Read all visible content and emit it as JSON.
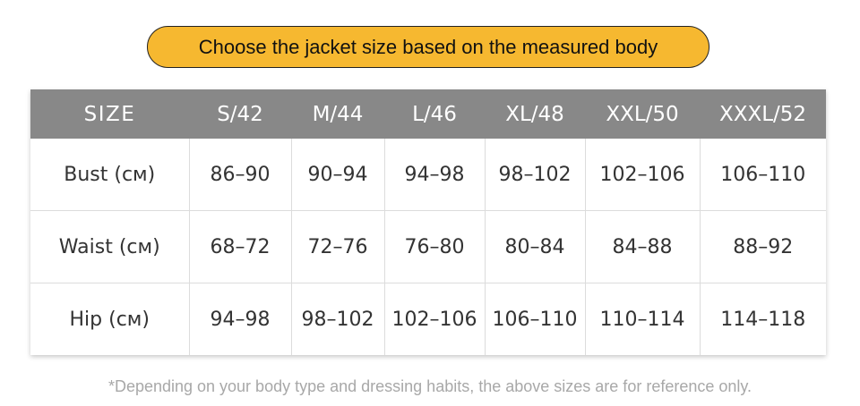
{
  "banner": {
    "text": "Choose the jacket size based on the measured body",
    "color": "#f6b830"
  },
  "table": {
    "header_bg": "#888888",
    "headers": [
      "SIZE",
      "S/42",
      "M/44",
      "L/46",
      "XL/48",
      "XXL/50",
      "XXXL/52"
    ],
    "rows": [
      {
        "label": "Bust (см)",
        "values": [
          "86–90",
          "90–94",
          "94–98",
          "98–102",
          "102–106",
          "106–110"
        ]
      },
      {
        "label": "Waist (см)",
        "values": [
          "68–72",
          "72–76",
          "76–80",
          "80–84",
          "84–88",
          "88–92"
        ]
      },
      {
        "label": "Hip (см)",
        "values": [
          "94–98",
          "98–102",
          "102–106",
          "106–110",
          "110–114",
          "114–118"
        ]
      }
    ]
  },
  "footnote": "*Depending on your body type and dressing habits, the above sizes are for reference only."
}
